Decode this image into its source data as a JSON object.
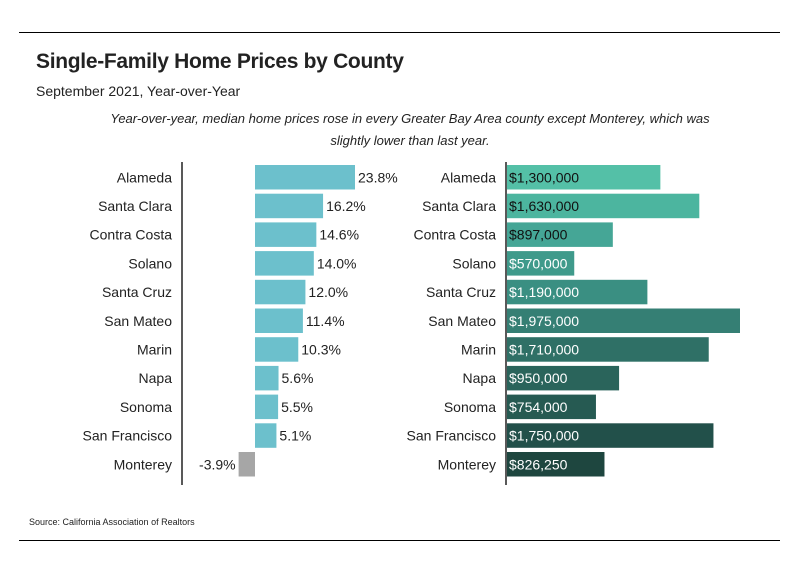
{
  "title": "Single-Family Home Prices by County",
  "subtitle": "September 2021, Year-over-Year",
  "note": "Year-over-year, median home prices rose in every Greater Bay Area county except Monterey, which was slightly lower than last year.",
  "source": "Source:  California Association of Realtors",
  "chart_data": [
    {
      "type": "bar",
      "orientation": "horizontal",
      "categories": [
        "Alameda",
        "Santa Clara",
        "Contra Costa",
        "Solano",
        "Santa Cruz",
        "San Mateo",
        "Marin",
        "Napa",
        "Sonoma",
        "San Francisco",
        "Monterey"
      ],
      "values": [
        23.8,
        16.2,
        14.6,
        14.0,
        12.0,
        11.4,
        10.3,
        5.6,
        5.5,
        5.1,
        -3.9
      ],
      "labels": [
        "23.8%",
        "16.2%",
        "14.6%",
        "14.0%",
        "12.0%",
        "11.4%",
        "10.3%",
        "5.6%",
        "5.5%",
        "5.1%",
        "-3.9%"
      ],
      "unit": "%",
      "xlim": [
        -5,
        25
      ],
      "grid": false,
      "colors": {
        "positive": "#6cc0cc",
        "negative": "#a6a6a6"
      }
    },
    {
      "type": "bar",
      "orientation": "horizontal",
      "categories": [
        "Alameda",
        "Santa Clara",
        "Contra Costa",
        "Solano",
        "Santa Cruz",
        "San Mateo",
        "Marin",
        "Napa",
        "Sonoma",
        "San Francisco",
        "Monterey"
      ],
      "values": [
        1300000,
        1630000,
        897000,
        570000,
        1190000,
        1975000,
        1710000,
        950000,
        754000,
        1750000,
        826250
      ],
      "labels": [
        "$1,300,000",
        "$1,630,000",
        "$897,000",
        "$570,000",
        "$1,190,000",
        "$1,975,000",
        "$1,710,000",
        "$950,000",
        "$754,000",
        "$1,750,000",
        "$826,250"
      ],
      "unit": "$",
      "xlim": [
        0,
        2000000
      ],
      "grid": false,
      "colors": [
        "#54c0a7",
        "#4cb59f",
        "#45a696",
        "#3f9a8b",
        "#3a8f82",
        "#357f74",
        "#2f7066",
        "#2a645b",
        "#265a52",
        "#22504a",
        "#1e463f"
      ]
    }
  ]
}
